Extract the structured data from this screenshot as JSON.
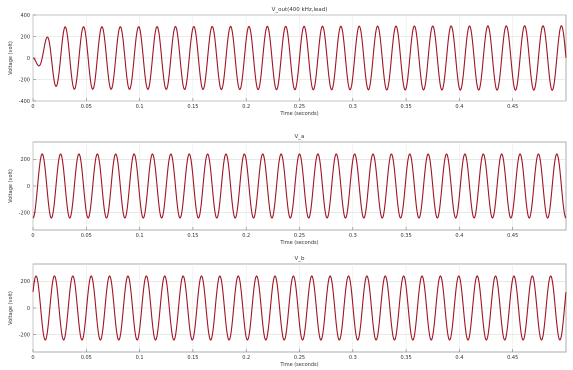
{
  "chart_data": [
    {
      "type": "line",
      "title": "V_out(400 kHz,lead)",
      "xlabel": "Time (seconds)",
      "ylabel": "Voltage (volt)",
      "x_ticks": [
        "0",
        "0.05",
        "0.1",
        "0.15",
        "0.2",
        "0.25",
        "0.3",
        "0.35",
        "0.4",
        "0.45"
      ],
      "y_ticks": [
        "400",
        "200",
        "0",
        "-200",
        "-400"
      ],
      "xlim": [
        0,
        0.5
      ],
      "ylim": [
        -400,
        400
      ],
      "grid": true,
      "series": [
        {
          "x": [
            0,
            0.017,
            0.03,
            0.5
          ],
          "y": [
            0,
            250,
            290,
            300
          ],
          "periods": 29,
          "start_phase_deg": 180,
          "color": "#a01424"
        }
      ]
    },
    {
      "type": "line",
      "title": "V_a",
      "xlabel": "Time (seconds)",
      "ylabel": "Voltage (volt)",
      "x_ticks": [
        "0",
        "0.05",
        "0.1",
        "0.15",
        "0.2",
        "0.25",
        "0.3",
        "0.35",
        "0.4",
        "0.45"
      ],
      "y_ticks": [
        "200",
        "0",
        "-200"
      ],
      "xlim": [
        0,
        0.5
      ],
      "ylim": [
        -330,
        330
      ],
      "grid": true,
      "series": [
        {
          "x": [
            0,
            0.5
          ],
          "y": [
            240,
            240
          ],
          "periods": 29,
          "start_phase_deg": 270,
          "color": "#a01424"
        }
      ]
    },
    {
      "type": "line",
      "title": "V_b",
      "xlabel": "Time (seconds)",
      "ylabel": "Voltage (volt)",
      "x_ticks": [
        "0",
        "0.05",
        "0.1",
        "0.15",
        "0.2",
        "0.25",
        "0.3",
        "0.35",
        "0.4",
        "0.45"
      ],
      "y_ticks": [
        "200",
        "0",
        "-200"
      ],
      "xlim": [
        0,
        0.5
      ],
      "ylim": [
        -330,
        330
      ],
      "grid": true,
      "series": [
        {
          "x": [
            0,
            0.5
          ],
          "y": [
            240,
            240
          ],
          "periods": 29,
          "start_phase_deg": 30,
          "color": "#a01424"
        }
      ]
    }
  ]
}
